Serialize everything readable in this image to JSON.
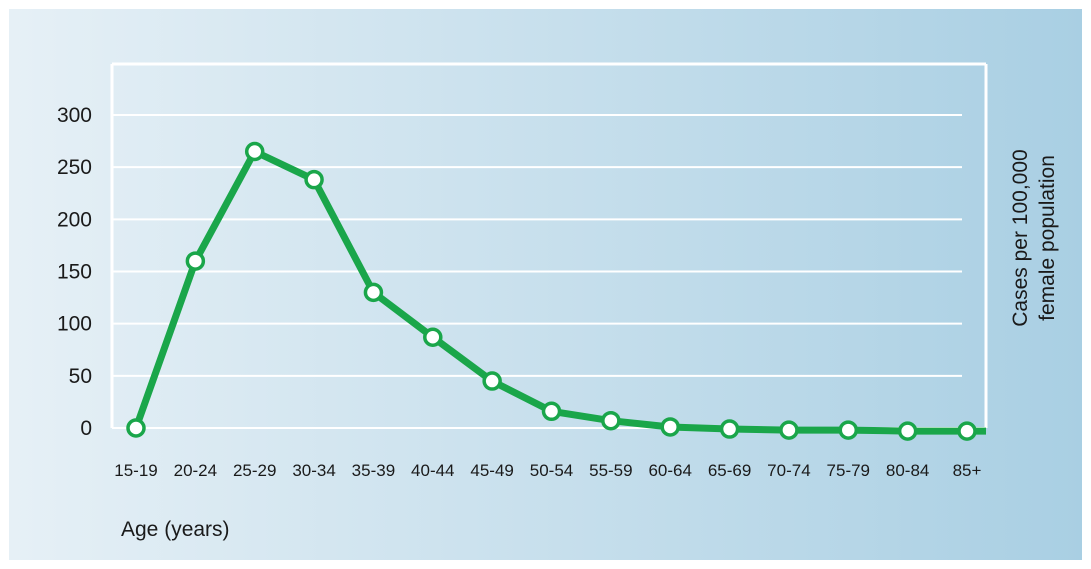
{
  "chart_data": {
    "type": "line",
    "categories": [
      "15-19",
      "20-24",
      "25-29",
      "30-34",
      "35-39",
      "40-44",
      "45-49",
      "50-54",
      "55-59",
      "60-64",
      "65-69",
      "70-74",
      "75-79",
      "80-84",
      "85+"
    ],
    "series": [
      {
        "values": [
          0,
          160,
          265,
          238,
          130,
          87,
          45,
          16,
          7,
          1,
          -1,
          -2,
          -2,
          -3,
          -3
        ]
      }
    ],
    "xlabel": "Age (years)",
    "ylabel_line1": "Cases per 100,000",
    "ylabel_line2": "female population",
    "yticks": [
      0,
      50,
      100,
      150,
      200,
      250,
      300
    ],
    "ylim": [
      0,
      300
    ],
    "grid": true,
    "colors": {
      "line": "#1aa64a",
      "marker_fill": "#ffffff",
      "grid": "#ffffff",
      "background_start": "#e6f0f6",
      "background_end": "#a9cfe3"
    }
  }
}
